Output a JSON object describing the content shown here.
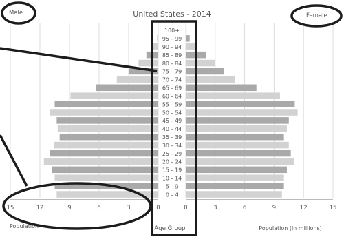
{
  "chart_data": {
    "type": "bar",
    "title": "United States - 2014",
    "categories": [
      "100+",
      "95 - 99",
      "90 - 94",
      "85 - 89",
      "80 - 84",
      "75 - 79",
      "70 - 74",
      "65 - 69",
      "60 - 64",
      "55 - 59",
      "50 - 54",
      "45 - 49",
      "40 - 44",
      "35 - 39",
      "30 - 34",
      "25 - 29",
      "20 - 24",
      "15 - 19",
      "10 - 14",
      "5 - 9",
      "0 - 4"
    ],
    "series": [
      {
        "name": "Male",
        "values": [
          0.02,
          0.1,
          0.5,
          1.2,
          2.0,
          3.0,
          4.2,
          6.3,
          8.9,
          10.5,
          11.0,
          10.3,
          10.2,
          10.0,
          10.6,
          11.0,
          11.6,
          10.8,
          10.5,
          10.5,
          10.3
        ]
      },
      {
        "name": "Female",
        "values": [
          0.08,
          0.4,
          1.1,
          2.1,
          3.0,
          3.9,
          5.0,
          7.2,
          9.6,
          11.1,
          11.4,
          10.5,
          10.3,
          10.0,
          10.5,
          10.7,
          11.0,
          10.3,
          10.0,
          10.0,
          9.8
        ]
      }
    ],
    "xlabel_left": "Population",
    "xlabel_center": "Age Group",
    "xlabel_right": "Population (in millions)",
    "left_ticks": [
      "15",
      "12",
      "9",
      "6",
      "3",
      "0"
    ],
    "right_ticks": [
      "0",
      "3",
      "6",
      "9",
      "12",
      "15"
    ],
    "xlim": [
      0,
      15
    ]
  },
  "legend": {
    "male": "Male",
    "female": "Female"
  },
  "colors": {
    "bar_light": "#d2d2d2",
    "bar_dark": "#a9a9a9",
    "annotation": "#1c1c1c",
    "axis": "#777777",
    "text": "#555555"
  }
}
